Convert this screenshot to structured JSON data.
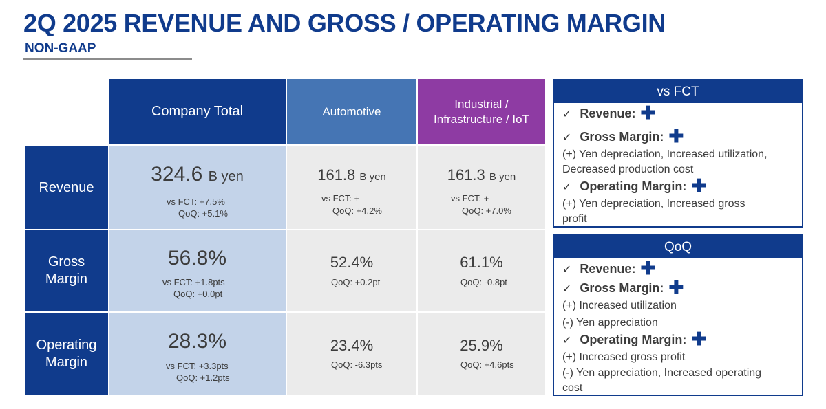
{
  "title": "2Q 2025 REVENUE AND GROSS / OPERATING MARGIN",
  "subtitle": "NON-GAAP",
  "columns": {
    "total": "Company Total",
    "auto": "Automotive",
    "ind_line1": "Industrial /",
    "ind_line2": "Infrastructure / IoT"
  },
  "rows": {
    "revenue": "Revenue",
    "gross_line1": "Gross",
    "gross_line2": "Margin",
    "op_line1": "Operating",
    "op_line2": "Margin"
  },
  "revenue": {
    "total": {
      "value": "324.6",
      "unit": "B yen",
      "vs_fct": "vs FCT: +7.5%",
      "qoq": "QoQ: +5.1%"
    },
    "auto": {
      "value": "161.8",
      "unit": "B yen",
      "vs_fct": "vs FCT: +",
      "qoq": "QoQ: +4.2%"
    },
    "ind": {
      "value": "161.3",
      "unit": "B yen",
      "vs_fct": "vs FCT: +",
      "qoq": "QoQ: +7.0%"
    }
  },
  "gross": {
    "total": {
      "value": "56.8%",
      "vs_fct": "vs FCT: +1.8pts",
      "qoq": "QoQ: +0.0pt"
    },
    "auto": {
      "value": "52.4%",
      "qoq": "QoQ: +0.2pt"
    },
    "ind": {
      "value": "61.1%",
      "qoq": "QoQ: -0.8pt"
    }
  },
  "operating": {
    "total": {
      "value": "28.3%",
      "vs_fct": "vs FCT: +3.3pts",
      "qoq": "QoQ: +1.2pts"
    },
    "auto": {
      "value": "23.4%",
      "qoq": "QoQ: -6.3pts"
    },
    "ind": {
      "value": "25.9%",
      "qoq": "QoQ: +4.6pts"
    }
  },
  "vs_fct_box": {
    "title": "vs FCT",
    "check": "✓",
    "plus": "✚",
    "revenue": "Revenue:",
    "gross": "Gross Margin:",
    "gross_line1": "(+) Yen depreciation, Increased utilization,",
    "gross_line2": "Decreased production cost",
    "operating": "Operating Margin:",
    "op_line1": "(+) Yen depreciation, Increased gross",
    "op_line2": "profit"
  },
  "qoq_box": {
    "title": "QoQ",
    "check": "✓",
    "plus": "✚",
    "revenue": "Revenue:",
    "gross": "Gross Margin:",
    "gross_line1": "(+) Increased utilization",
    "gross_line2": "(-) Yen appreciation",
    "operating": "Operating Margin:",
    "op_line1": "(+) Increased gross profit",
    "op_line2": "(-) Yen appreciation, Increased operating",
    "op_line3": "cost"
  },
  "colors": {
    "navy": "#103b8c",
    "automotive": "#4575b4",
    "industrial": "#8e3ba3",
    "total_fill": "#c3d3e9",
    "segment_fill": "#ebebeb"
  }
}
